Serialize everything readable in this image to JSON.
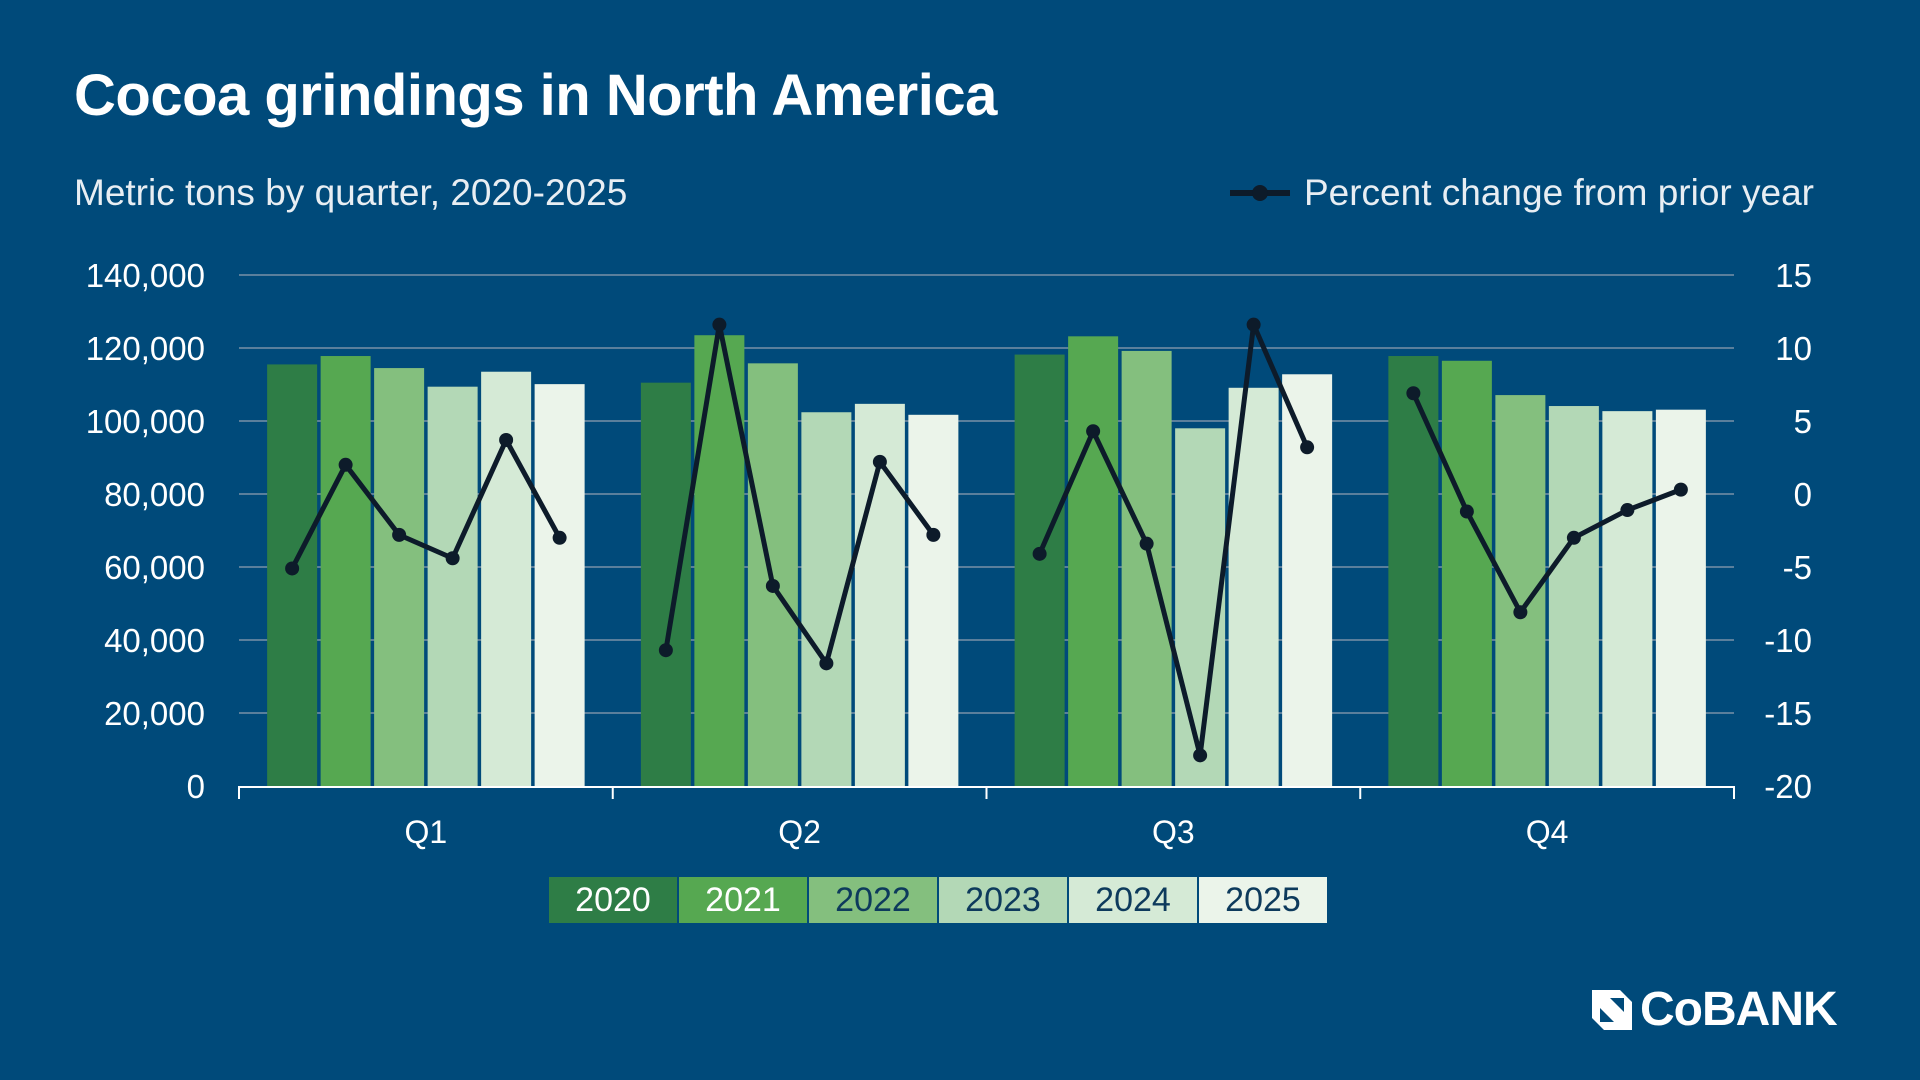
{
  "title": "Cocoa grindings in North America",
  "subtitle": "Metric tons by quarter, 2020-2025",
  "logo_text": "CoBANK",
  "colors": {
    "background": "#004a7a",
    "line": "#0d1b2a",
    "series": [
      "#2e7d46",
      "#56a851",
      "#84bf7e",
      "#b3d8b6",
      "#d5ead6",
      "#ebf4ea"
    ],
    "legend_text": [
      "#ffffff",
      "#ffffff",
      "#0d3a5c",
      "#0d3a5c",
      "#0d3a5c",
      "#0d3a5c"
    ]
  },
  "chart_data": {
    "type": "bar",
    "categories": [
      "Q1",
      "Q2",
      "Q3",
      "Q4"
    ],
    "series": [
      {
        "name": "2020",
        "values": [
          115500,
          110500,
          118200,
          117800
        ]
      },
      {
        "name": "2021",
        "values": [
          117800,
          123500,
          123200,
          116500
        ]
      },
      {
        "name": "2022",
        "values": [
          114500,
          115800,
          119200,
          107100
        ]
      },
      {
        "name": "2023",
        "values": [
          109400,
          102400,
          98000,
          104100
        ]
      },
      {
        "name": "2024",
        "values": [
          113500,
          104700,
          109100,
          102700
        ]
      },
      {
        "name": "2025",
        "values": [
          110100,
          101700,
          112800,
          103100
        ]
      }
    ],
    "line_series": {
      "name": "Percent change from prior year",
      "type": "line",
      "axis": "right",
      "values": [
        [
          -5.1,
          2.0,
          -2.8,
          -4.4,
          3.7,
          -3.0
        ],
        [
          -10.7,
          11.6,
          -6.3,
          -11.6,
          2.2,
          -2.8
        ],
        [
          -4.1,
          4.3,
          -3.4,
          -17.9,
          11.6,
          3.2
        ],
        [
          6.9,
          -1.2,
          -8.1,
          -3.0,
          -1.1,
          0.3
        ]
      ]
    },
    "ylim": [
      0,
      140000
    ],
    "y_ticks": [
      "0",
      "20,000",
      "40,000",
      "60,000",
      "80,000",
      "100,000",
      "120,000",
      "140,000"
    ],
    "y2lim": [
      -20,
      15
    ],
    "y2_ticks": [
      "-20",
      "-15",
      "-10",
      "-5",
      "0",
      "5",
      "10",
      "15"
    ],
    "grid": true,
    "legend_placement": "bottom"
  }
}
